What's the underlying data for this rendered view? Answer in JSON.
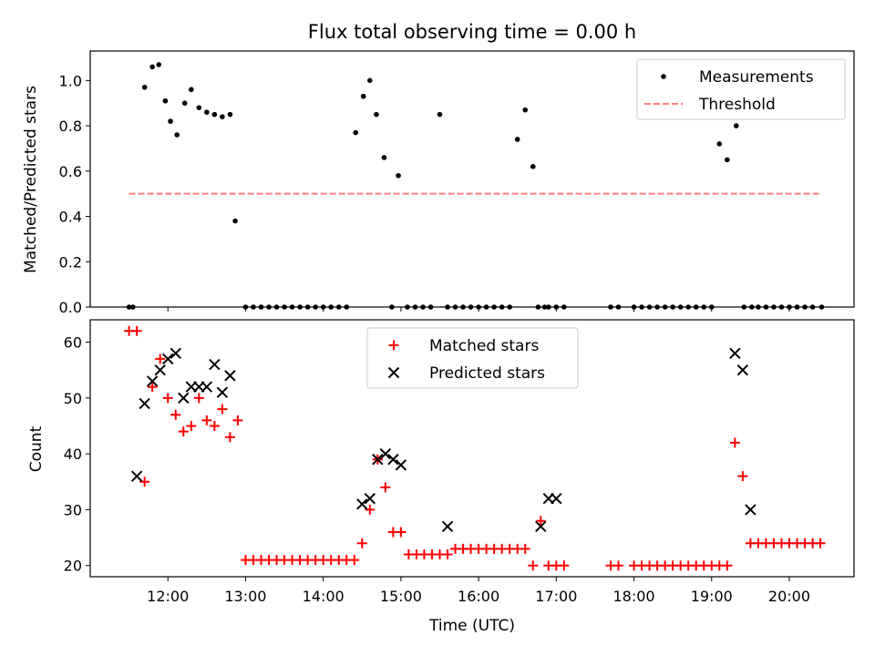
{
  "chart_data": {
    "title": "Flux total observing time = 0.00 h",
    "xlabel": "Time (UTC)",
    "x_ticks": [
      "12:00",
      "13:00",
      "14:00",
      "15:00",
      "16:00",
      "17:00",
      "18:00",
      "19:00",
      "20:00"
    ],
    "x_tick_hours": [
      12,
      13,
      14,
      15,
      16,
      17,
      18,
      19,
      20
    ],
    "xlim": [
      "11:00",
      "20:50"
    ],
    "panels": [
      {
        "type": "scatter",
        "ylabel": "Matched/Predicted stars",
        "ylim": [
          0,
          1.13
        ],
        "y_ticks": [
          "0.0",
          "0.2",
          "0.4",
          "0.6",
          "0.8",
          "1.0"
        ],
        "y_tick_values": [
          0,
          0.2,
          0.4,
          0.6,
          0.8,
          1.0
        ],
        "legend_position": "top-right",
        "threshold": {
          "name": "Threshold",
          "value": 0.5,
          "x_range": [
            "11:30",
            "20:25"
          ],
          "color": "#ff7f7f",
          "style": "dashed"
        },
        "series": [
          {
            "name": "Measurements",
            "color": "#000000",
            "marker": "dot",
            "x": [
              "11:30",
              "11:33",
              "11:42",
              "11:48",
              "11:53",
              "11:58",
              "12:02",
              "12:07",
              "12:13",
              "12:18",
              "12:24",
              "12:30",
              "12:36",
              "12:42",
              "12:48",
              "12:52",
              "13:00",
              "13:06",
              "13:12",
              "13:18",
              "13:24",
              "13:30",
              "13:36",
              "13:42",
              "13:48",
              "13:54",
              "14:00",
              "14:06",
              "14:12",
              "14:18",
              "14:25",
              "14:31",
              "14:36",
              "14:41",
              "14:47",
              "14:53",
              "14:58",
              "15:05",
              "15:11",
              "15:17",
              "15:23",
              "15:30",
              "15:36",
              "15:42",
              "15:48",
              "15:54",
              "16:00",
              "16:06",
              "16:12",
              "16:18",
              "16:24",
              "16:30",
              "16:36",
              "16:42",
              "16:46",
              "16:51",
              "16:54",
              "17:00",
              "17:06",
              "17:42",
              "17:48",
              "18:00",
              "18:06",
              "18:12",
              "18:18",
              "18:24",
              "18:30",
              "18:36",
              "18:42",
              "18:48",
              "18:54",
              "19:00",
              "19:06",
              "19:12",
              "19:19",
              "19:25",
              "19:31",
              "19:36",
              "19:42",
              "19:48",
              "19:54",
              "20:00",
              "20:06",
              "20:12",
              "20:18",
              "20:25"
            ],
            "y": [
              0,
              0,
              0.97,
              1.06,
              1.07,
              0.91,
              0.82,
              0.76,
              0.9,
              0.96,
              0.88,
              0.86,
              0.85,
              0.84,
              0.85,
              0.38,
              0,
              0,
              0,
              0,
              0,
              0,
              0,
              0,
              0,
              0,
              0,
              0,
              0,
              0,
              0.77,
              0.93,
              1.0,
              0.85,
              0.66,
              0,
              0.58,
              0,
              0,
              0,
              0,
              0.85,
              0,
              0,
              0,
              0,
              0,
              0,
              0,
              0,
              0,
              0.74,
              0.87,
              0.62,
              0,
              0,
              0,
              0,
              0,
              0,
              0,
              0,
              0,
              0,
              0,
              0,
              0,
              0,
              0,
              0,
              0,
              0,
              0.72,
              0.65,
              0.8,
              0,
              0,
              0,
              0,
              0,
              0,
              0,
              0,
              0,
              0,
              0
            ]
          }
        ]
      },
      {
        "type": "scatter",
        "ylabel": "Count",
        "ylim": [
          18,
          64
        ],
        "y_ticks": [
          "20",
          "30",
          "40",
          "50",
          "60"
        ],
        "y_tick_values": [
          20,
          30,
          40,
          50,
          60
        ],
        "legend_position": "top-center",
        "series": [
          {
            "name": "Matched stars",
            "color": "#ff0000",
            "marker": "plus",
            "x": [
              "11:30",
              "11:36",
              "11:42",
              "11:48",
              "11:54",
              "12:00",
              "12:06",
              "12:12",
              "12:18",
              "12:24",
              "12:30",
              "12:36",
              "12:42",
              "12:48",
              "12:54",
              "13:00",
              "13:06",
              "13:12",
              "13:18",
              "13:24",
              "13:30",
              "13:36",
              "13:42",
              "13:48",
              "13:54",
              "14:00",
              "14:06",
              "14:12",
              "14:18",
              "14:24",
              "14:30",
              "14:36",
              "14:42",
              "14:48",
              "14:54",
              "15:00",
              "15:06",
              "15:12",
              "15:18",
              "15:24",
              "15:30",
              "15:36",
              "15:42",
              "15:48",
              "15:54",
              "16:00",
              "16:06",
              "16:12",
              "16:18",
              "16:24",
              "16:30",
              "16:36",
              "16:42",
              "16:48",
              "16:54",
              "17:00",
              "17:06",
              "17:42",
              "17:48",
              "18:00",
              "18:06",
              "18:12",
              "18:18",
              "18:24",
              "18:30",
              "18:36",
              "18:42",
              "18:48",
              "18:54",
              "19:00",
              "19:06",
              "19:12",
              "19:18",
              "19:24",
              "19:30",
              "19:36",
              "19:42",
              "19:48",
              "19:54",
              "20:00",
              "20:06",
              "20:12",
              "20:18",
              "20:24"
            ],
            "y": [
              62,
              62,
              35,
              52,
              57,
              50,
              47,
              44,
              45,
              50,
              46,
              45,
              48,
              43,
              46,
              21,
              21,
              21,
              21,
              21,
              21,
              21,
              21,
              21,
              21,
              21,
              21,
              21,
              21,
              21,
              24,
              30,
              39,
              34,
              26,
              26,
              22,
              22,
              22,
              22,
              22,
              22,
              23,
              23,
              23,
              23,
              23,
              23,
              23,
              23,
              23,
              23,
              20,
              28,
              20,
              20,
              20,
              20,
              20,
              20,
              20,
              20,
              20,
              20,
              20,
              20,
              20,
              20,
              20,
              20,
              20,
              20,
              42,
              36,
              24,
              24,
              24,
              24,
              24,
              24,
              24,
              24,
              24,
              24
            ]
          },
          {
            "name": "Predicted stars",
            "color": "#000000",
            "marker": "x",
            "x": [
              "11:36",
              "11:42",
              "11:48",
              "11:54",
              "12:00",
              "12:06",
              "12:12",
              "12:18",
              "12:24",
              "12:30",
              "12:36",
              "12:42",
              "12:48",
              "14:30",
              "14:36",
              "14:42",
              "14:48",
              "14:54",
              "15:00",
              "15:36",
              "16:48",
              "16:54",
              "17:00",
              "19:18",
              "19:24",
              "19:30"
            ],
            "y": [
              36,
              49,
              53,
              55,
              57,
              58,
              50,
              52,
              52,
              52,
              56,
              51,
              54,
              31,
              32,
              39,
              40,
              39,
              38,
              27,
              27,
              32,
              32,
              58,
              55,
              30
            ]
          }
        ]
      }
    ]
  }
}
